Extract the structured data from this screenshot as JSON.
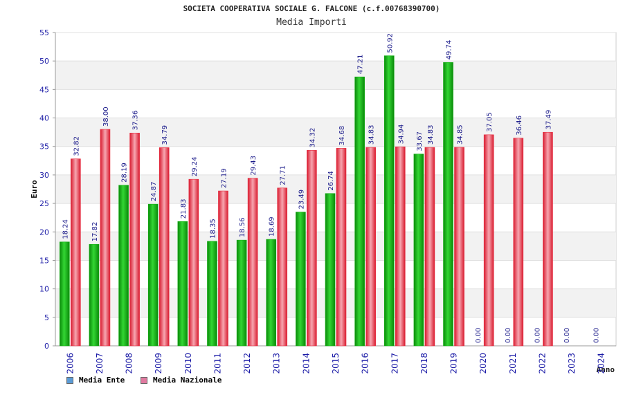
{
  "title": "SOCIETA COOPERATIVA SOCIALE G. FALCONE (c.f.00768390700)",
  "subtitle": "Media Importi",
  "colors": {
    "ente": "#12b012",
    "nazionale": "#e8283c",
    "legend_ente": "#5b9bd5",
    "legend_nazionale": "#e07aa0",
    "axis_text": "#1a1aa6",
    "label_text": "#1a1a8a"
  },
  "chart_data": {
    "type": "bar",
    "title": "SOCIETA COOPERATIVA SOCIALE G. FALCONE (c.f.00768390700)",
    "subtitle": "Media Importi",
    "xlabel": "Anno",
    "ylabel": "Euro",
    "ylim": [
      0,
      55
    ],
    "yticks": [
      0,
      5,
      10,
      15,
      20,
      25,
      30,
      35,
      40,
      45,
      50,
      55
    ],
    "grid": true,
    "legend_position": "bottom-left",
    "categories": [
      "2006",
      "2007",
      "2008",
      "2009",
      "2010",
      "2011",
      "2012",
      "2013",
      "2014",
      "2015",
      "2016",
      "2017",
      "2018",
      "2019",
      "2020",
      "2021",
      "2022",
      "2023",
      "2024"
    ],
    "series": [
      {
        "name": "Media Ente",
        "values": [
          18.24,
          17.82,
          28.19,
          24.87,
          21.83,
          18.35,
          18.56,
          18.69,
          23.49,
          26.74,
          47.21,
          50.92,
          33.67,
          49.74,
          0.0,
          0.0,
          0.0,
          0.0,
          0.0
        ],
        "labels": [
          "18.24",
          "17.82",
          "28.19",
          "24.87",
          "21.83",
          "18.35",
          "18.56",
          "18.69",
          "23.49",
          "26.74",
          "47.21",
          "50.92",
          "33.67",
          "49.74",
          "0.00",
          "0.00",
          "0.00",
          "0.00",
          "0.00"
        ]
      },
      {
        "name": "Media Nazionale",
        "values": [
          32.82,
          38.0,
          37.36,
          34.79,
          29.24,
          27.19,
          29.43,
          27.71,
          34.32,
          34.68,
          34.83,
          34.94,
          34.83,
          34.85,
          37.05,
          36.46,
          37.49,
          null,
          null
        ],
        "labels": [
          "32.82",
          "38.00",
          "37.36",
          "34.79",
          "29.24",
          "27.19",
          "29.43",
          "27.71",
          "34.32",
          "34.68",
          "34.83",
          "34.94",
          "34.83",
          "34.85",
          "37.05",
          "36.46",
          "37.49",
          null,
          null
        ]
      }
    ]
  }
}
